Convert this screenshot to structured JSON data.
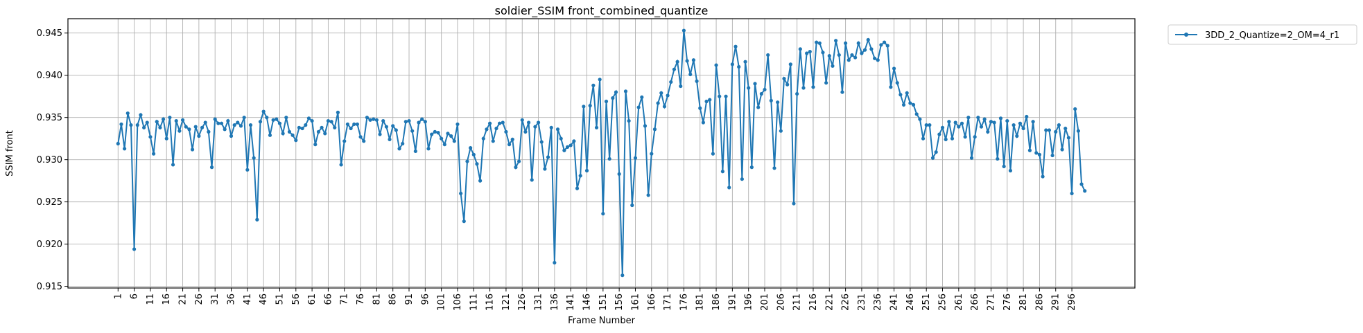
{
  "chart_data": {
    "type": "line",
    "title": "soldier_SSIM front_combined_quantize",
    "xlabel": "Frame Number",
    "ylabel": "SSIM front",
    "xlim": [
      -14.5,
      315.5
    ],
    "ylim": [
      0.9148,
      0.9467
    ],
    "yticks": [
      0.915,
      0.92,
      0.925,
      0.93,
      0.935,
      0.94,
      0.945
    ],
    "ytick_labels": [
      "0.915",
      "0.920",
      "0.925",
      "0.930",
      "0.935",
      "0.940",
      "0.945"
    ],
    "xticks": [
      1,
      6,
      11,
      16,
      21,
      26,
      31,
      36,
      41,
      46,
      51,
      56,
      61,
      66,
      71,
      76,
      81,
      86,
      91,
      96,
      101,
      106,
      111,
      116,
      121,
      126,
      131,
      136,
      141,
      146,
      151,
      156,
      161,
      166,
      171,
      176,
      181,
      186,
      191,
      196,
      201,
      206,
      211,
      216,
      221,
      226,
      231,
      236,
      241,
      246,
      251,
      256,
      261,
      266,
      271,
      276,
      281,
      286,
      291,
      296
    ],
    "grid": true,
    "legend_position": "outside-top-right",
    "series": [
      {
        "name": "3DD_2_Quantize=2_OM=4_r1",
        "color": "#1f77b4",
        "x_start": 1,
        "x_step": 1,
        "values": [
          0.9319,
          0.9342,
          0.9313,
          0.9355,
          0.9341,
          0.9194,
          0.9341,
          0.9353,
          0.9338,
          0.9344,
          0.9327,
          0.9307,
          0.9345,
          0.9338,
          0.9348,
          0.9325,
          0.935,
          0.9294,
          0.9346,
          0.9334,
          0.9347,
          0.9339,
          0.9336,
          0.9312,
          0.9339,
          0.9328,
          0.9338,
          0.9344,
          0.9333,
          0.9291,
          0.9348,
          0.9343,
          0.9343,
          0.9336,
          0.9346,
          0.9328,
          0.9341,
          0.9344,
          0.934,
          0.935,
          0.9288,
          0.9341,
          0.9302,
          0.9229,
          0.9345,
          0.9357,
          0.935,
          0.9329,
          0.9347,
          0.9348,
          0.9343,
          0.9331,
          0.935,
          0.9333,
          0.9329,
          0.9323,
          0.9338,
          0.9337,
          0.9341,
          0.9349,
          0.9346,
          0.9318,
          0.9333,
          0.9338,
          0.9331,
          0.9346,
          0.9345,
          0.9338,
          0.9356,
          0.9294,
          0.9322,
          0.9342,
          0.9337,
          0.9342,
          0.9342,
          0.9327,
          0.9322,
          0.935,
          0.9347,
          0.9348,
          0.9347,
          0.933,
          0.9346,
          0.9339,
          0.9324,
          0.934,
          0.9335,
          0.9313,
          0.9319,
          0.9345,
          0.9346,
          0.9334,
          0.931,
          0.9344,
          0.9348,
          0.9345,
          0.9313,
          0.933,
          0.9333,
          0.9332,
          0.9325,
          0.9318,
          0.9331,
          0.9328,
          0.9322,
          0.9342,
          0.926,
          0.9227,
          0.9298,
          0.9314,
          0.9306,
          0.9295,
          0.9275,
          0.9325,
          0.9336,
          0.9343,
          0.9322,
          0.9337,
          0.9343,
          0.9344,
          0.9333,
          0.9318,
          0.9324,
          0.9291,
          0.9298,
          0.9347,
          0.9333,
          0.9344,
          0.9276,
          0.9339,
          0.9344,
          0.9321,
          0.9289,
          0.9303,
          0.9338,
          0.9178,
          0.9336,
          0.9325,
          0.9311,
          0.9315,
          0.9317,
          0.9322,
          0.9266,
          0.9281,
          0.9363,
          0.9287,
          0.9364,
          0.9388,
          0.9338,
          0.9395,
          0.9236,
          0.9369,
          0.9301,
          0.9373,
          0.938,
          0.9283,
          0.9163,
          0.9381,
          0.9346,
          0.9246,
          0.9302,
          0.9362,
          0.9374,
          0.934,
          0.9258,
          0.9307,
          0.9336,
          0.9367,
          0.9379,
          0.9363,
          0.9376,
          0.9392,
          0.9407,
          0.9416,
          0.9387,
          0.9453,
          0.9417,
          0.9401,
          0.9418,
          0.9393,
          0.9361,
          0.9344,
          0.9369,
          0.9371,
          0.9307,
          0.9412,
          0.9375,
          0.9286,
          0.9375,
          0.9267,
          0.9413,
          0.9434,
          0.941,
          0.9277,
          0.9416,
          0.9385,
          0.9291,
          0.939,
          0.9362,
          0.9378,
          0.9383,
          0.9424,
          0.937,
          0.929,
          0.9368,
          0.9334,
          0.9396,
          0.9389,
          0.9413,
          0.9248,
          0.9378,
          0.9431,
          0.9385,
          0.9426,
          0.9428,
          0.9386,
          0.9439,
          0.9438,
          0.9427,
          0.9391,
          0.9423,
          0.9411,
          0.9441,
          0.9424,
          0.938,
          0.9438,
          0.9418,
          0.9424,
          0.9421,
          0.9438,
          0.9426,
          0.943,
          0.9442,
          0.9431,
          0.942,
          0.9418,
          0.9436,
          0.9439,
          0.9435,
          0.9386,
          0.9408,
          0.9391,
          0.9377,
          0.9365,
          0.9379,
          0.9367,
          0.9365,
          0.9354,
          0.9348,
          0.9325,
          0.9341,
          0.9341,
          0.9302,
          0.9309,
          0.933,
          0.9338,
          0.9324,
          0.9345,
          0.9325,
          0.9344,
          0.9339,
          0.9343,
          0.9327,
          0.935,
          0.9302,
          0.9327,
          0.935,
          0.9339,
          0.9348,
          0.9333,
          0.9345,
          0.9344,
          0.9301,
          0.9349,
          0.9292,
          0.9346,
          0.9287,
          0.9341,
          0.9328,
          0.9343,
          0.9337,
          0.9351,
          0.9311,
          0.9345,
          0.9308,
          0.9306,
          0.928,
          0.9335,
          0.9335,
          0.9305,
          0.9333,
          0.9341,
          0.9312,
          0.9337,
          0.9326,
          0.926,
          0.936,
          0.9334,
          0.9271,
          0.9263
        ]
      }
    ]
  }
}
